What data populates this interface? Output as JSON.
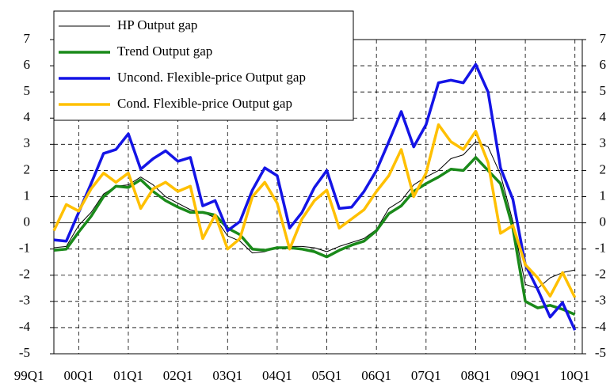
{
  "chart_data": {
    "type": "line",
    "categories": [
      "99Q1",
      null,
      null,
      null,
      "00Q1",
      null,
      null,
      null,
      "01Q1",
      null,
      null,
      null,
      "02Q1",
      null,
      null,
      null,
      "03Q1",
      null,
      null,
      null,
      "04Q1",
      null,
      null,
      null,
      "05Q1",
      null,
      null,
      null,
      "06Q1",
      null,
      null,
      null,
      "07Q1",
      null,
      null,
      null,
      "08Q1",
      null,
      null,
      null,
      "09Q1",
      null,
      null,
      null,
      "10Q1"
    ],
    "series": [
      {
        "name": "HP Output gap",
        "color": "#000000",
        "width": 1,
        "values": [
          null,
          null,
          -0.95,
          -0.9,
          -0.1,
          0.4,
          1.1,
          1.4,
          1.45,
          1.75,
          1.45,
          1.0,
          0.75,
          0.5,
          0.4,
          0.2,
          -0.5,
          -0.7,
          -1.15,
          -1.1,
          -0.95,
          -0.9,
          -0.9,
          -0.95,
          -1.1,
          -0.9,
          -0.75,
          -0.6,
          -0.25,
          0.55,
          0.85,
          1.45,
          1.75,
          2.0,
          2.45,
          2.6,
          3.1,
          2.9,
          1.85,
          0.05,
          -2.35,
          -2.5,
          -2.1,
          -1.9,
          -1.8
        ]
      },
      {
        "name": "Trend Output gap",
        "color": "#1a8a1a",
        "width": 3.5,
        "values": [
          null,
          null,
          -1.05,
          -1.0,
          -0.35,
          0.25,
          1.0,
          1.4,
          1.35,
          1.65,
          1.2,
          0.85,
          0.6,
          0.4,
          0.4,
          0.3,
          -0.2,
          -0.45,
          -1.0,
          -1.05,
          -0.95,
          -0.95,
          -1.0,
          -1.1,
          -1.3,
          -1.05,
          -0.85,
          -0.7,
          -0.3,
          0.35,
          0.65,
          1.2,
          1.5,
          1.75,
          2.05,
          2.0,
          2.5,
          2.0,
          1.5,
          -0.2,
          -3.0,
          -3.25,
          -3.15,
          -3.3,
          -3.5
        ]
      },
      {
        "name": "Uncond. Flexible-price Output gap",
        "color": "#1414e6",
        "width": 3.5,
        "values": [
          null,
          null,
          -0.65,
          -0.7,
          0.4,
          1.5,
          2.65,
          2.8,
          3.4,
          2.05,
          2.45,
          2.75,
          2.35,
          2.5,
          0.65,
          0.85,
          -0.3,
          0.05,
          1.25,
          2.1,
          1.8,
          -0.2,
          0.4,
          1.35,
          2.0,
          0.55,
          0.6,
          1.2,
          2.0,
          3.1,
          4.25,
          2.9,
          3.75,
          5.35,
          5.45,
          5.35,
          6.05,
          5.0,
          2.1,
          0.9,
          -1.6,
          -2.55,
          -3.6,
          -3.05,
          -4.1
        ]
      },
      {
        "name": "Cond. Flexible-price Output gap",
        "color": "#ffc000",
        "width": 3.5,
        "values": [
          null,
          null,
          -0.3,
          0.7,
          0.45,
          1.3,
          1.9,
          1.55,
          1.9,
          0.55,
          1.3,
          1.55,
          1.2,
          1.4,
          -0.6,
          0.3,
          -1.0,
          -0.6,
          1.0,
          1.55,
          0.75,
          -1.0,
          0.15,
          0.85,
          1.25,
          -0.2,
          0.15,
          0.5,
          1.2,
          1.8,
          2.8,
          1.0,
          1.9,
          3.75,
          3.1,
          2.8,
          3.5,
          2.3,
          -0.4,
          -0.1,
          -1.6,
          -2.1,
          -2.8,
          -1.9,
          -2.85
        ]
      }
    ],
    "ylim": [
      -5,
      7
    ],
    "yticks": [
      -5,
      -4,
      -3,
      -2,
      -1,
      0,
      1,
      2,
      3,
      4,
      5,
      6,
      7
    ],
    "y2lim": [
      -5,
      7
    ],
    "y2ticks": [
      -5,
      -4,
      -3,
      -2,
      -1,
      0,
      1,
      2,
      3,
      4,
      5,
      6,
      7
    ],
    "grid": true,
    "legend": "upper left"
  }
}
